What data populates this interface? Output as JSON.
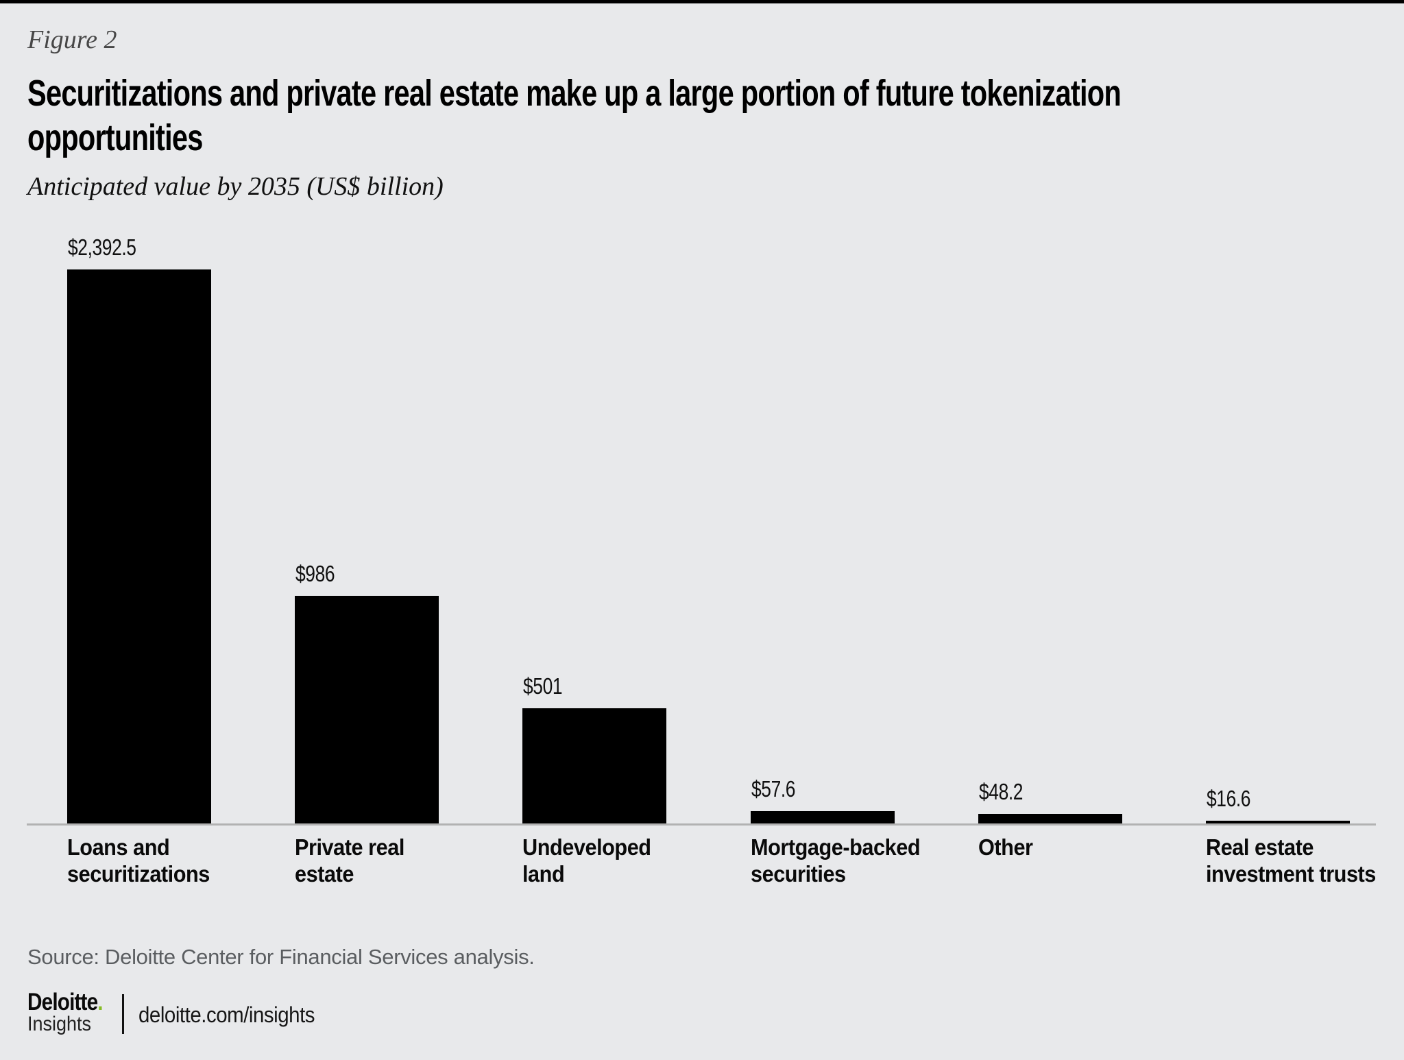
{
  "page": {
    "figure_label": "Figure 2",
    "title": "Securitizations and private real estate make up a large portion of future tokenization\nopportunities",
    "subtitle": "Anticipated value by 2035 (US$ billion)",
    "source": "Source: Deloitte Center for Financial Services analysis."
  },
  "footer": {
    "brand": "Deloitte",
    "brand_dot": ".",
    "brand_sub": "Insights",
    "url": "deloitte.com/insights"
  },
  "colors": {
    "background": "#e8e9eb",
    "bar": "#000000",
    "axis_line": "#b2b2b2",
    "accent_green": "#86bc25",
    "source_text": "#5a5d60"
  },
  "chart_data": {
    "type": "bar",
    "title": "Securitizations and private real estate make up a large portion of future tokenization opportunities",
    "subtitle": "Anticipated value by 2035 (US$ billion)",
    "unit": "US$ billion",
    "categories": [
      "Loans and\nsecuritizations",
      "Private real\nestate",
      "Undeveloped\nland",
      "Mortgage-backed\nsecurities",
      "Other",
      "Real estate\ninvestment trusts"
    ],
    "values": [
      2392.5,
      986,
      501,
      57.6,
      48.2,
      16.6
    ],
    "value_labels": [
      "$2,392.5",
      "$986",
      "$501",
      "$57.6",
      "$48.2",
      "$16.6"
    ],
    "bar_color": "#000000",
    "ylim": [
      0,
      2500
    ],
    "grid": false,
    "legend": false,
    "y_axis_hidden": true,
    "baseline_color": "#b2b2b2"
  }
}
